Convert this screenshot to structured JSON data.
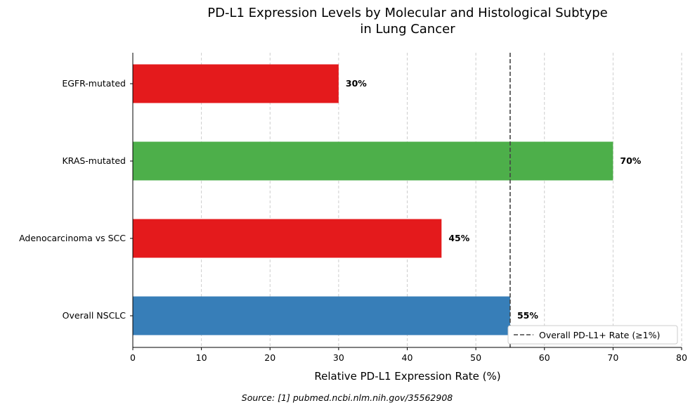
{
  "chart_data": {
    "type": "bar",
    "orientation": "horizontal",
    "title_lines": [
      "PD-L1 Expression Levels by Molecular and Histological Subtype",
      "in Lung Cancer"
    ],
    "xlabel": "Relative PD-L1 Expression Rate (%)",
    "ylabel": "",
    "xlim": [
      0,
      80
    ],
    "xticks": [
      0,
      10,
      20,
      30,
      40,
      50,
      60,
      70,
      80
    ],
    "grid": "vertical dashed",
    "categories": [
      "Overall NSCLC",
      "Adenocarcinoma vs SCC",
      "KRAS-mutated",
      "EGFR-mutated"
    ],
    "values": [
      55,
      45,
      70,
      30
    ],
    "value_labels": [
      "55%",
      "45%",
      "70%",
      "30%"
    ],
    "colors": [
      "#377eb8",
      "#e41a1c",
      "#4daf4a",
      "#e41a1c"
    ],
    "reference_line": {
      "value": 55,
      "label": "Overall PD-L1+ Rate (≥1%)",
      "color": "#444444",
      "style": "dashed"
    },
    "legend_position": "lower-right",
    "source": "Source: [1] pubmed.ncbi.nlm.nih.gov/35562908"
  }
}
